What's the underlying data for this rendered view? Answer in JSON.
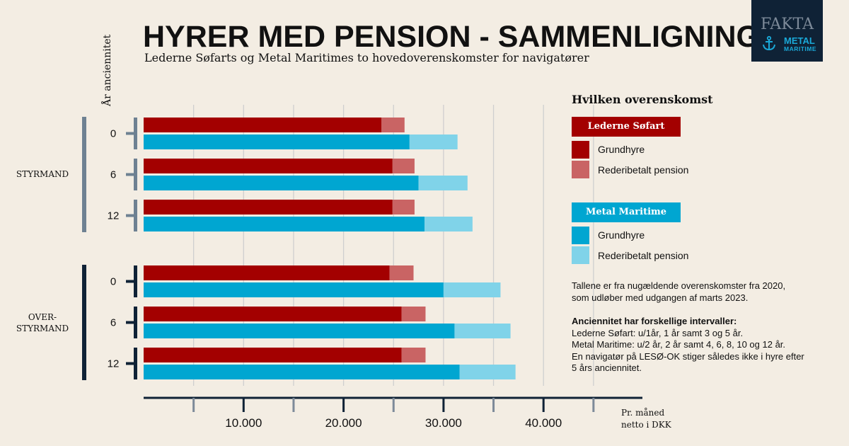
{
  "title": "HYRER MED PENSION - SAMMENLIGNING",
  "subtitle": "Lederne Søfarts og Metal Maritimes to hovedoverenskomster for navigatører",
  "badge": {
    "label": "FAKTA",
    "logo_line1": "METAL",
    "logo_line2": "MARITIME"
  },
  "legend": {
    "title": "Hvilken overenskomst",
    "groups": [
      {
        "name": "Lederne Søfart",
        "items": [
          "Grundhyre",
          "Rederibetalt pension"
        ]
      },
      {
        "name": "Metal Maritime",
        "items": [
          "Grundhyre",
          "Rederibetalt pension"
        ]
      }
    ]
  },
  "notes": {
    "intro": [
      "Tallene er fra nugældende overenskomster fra 2020,",
      "som udløber med udgangen af marts 2023."
    ],
    "heading": "Anciennitet har forskellige intervaller:",
    "lines": [
      "Lederne Søfart: u/1år, 1 år samt 3 og 5 år.",
      "Metal Maritime: u/2 år, 2 år samt 4, 6, 8, 10 og 12 år.",
      "En navigatør på LESØ-OK stiger således ikke i hyre efter",
      "5 års anciennitet."
    ]
  },
  "colors": {
    "ls_base": "#a30000",
    "ls_pension": "#c96464",
    "mm_base": "#00a6d1",
    "mm_pension": "#80d3e9",
    "grid": "#cfcfcf",
    "bracket_styrmand": "#6e8192",
    "bracket_overstyrmand": "#0f2236"
  },
  "chart_data": {
    "type": "bar",
    "orientation": "horizontal",
    "stacked": true,
    "ylabel": "År anciennitet",
    "xlabel": "Pr. måned netto i DKK",
    "xlabel_lines": [
      "Pr. måned",
      "netto i DKK"
    ],
    "xlim": [
      0,
      49500
    ],
    "xticks": [
      10000,
      20000,
      30000,
      40000
    ],
    "xtick_labels": [
      "10.000",
      "20.000",
      "30.000",
      "40.000"
    ],
    "groups": [
      {
        "label": "STYRMAND",
        "label_lines": [
          "STYRMAND"
        ],
        "rows": [
          {
            "seniority": "0",
            "lederne_sofart": {
              "grundhyre": 23800,
              "pension": 2300
            },
            "metal_maritime": {
              "grundhyre": 26600,
              "pension": 4800
            }
          },
          {
            "seniority": "6",
            "lederne_sofart": {
              "grundhyre": 24900,
              "pension": 2200
            },
            "metal_maritime": {
              "grundhyre": 27500,
              "pension": 4900
            }
          },
          {
            "seniority": "12",
            "lederne_sofart": {
              "grundhyre": 24900,
              "pension": 2200
            },
            "metal_maritime": {
              "grundhyre": 28100,
              "pension": 4800
            }
          }
        ]
      },
      {
        "label": "OVER-STYRMAND",
        "label_lines": [
          "OVER-",
          "STYRMAND"
        ],
        "rows": [
          {
            "seniority": "0",
            "lederne_sofart": {
              "grundhyre": 24600,
              "pension": 2400
            },
            "metal_maritime": {
              "grundhyre": 30000,
              "pension": 5700
            }
          },
          {
            "seniority": "6",
            "lederne_sofart": {
              "grundhyre": 25800,
              "pension": 2400
            },
            "metal_maritime": {
              "grundhyre": 31100,
              "pension": 5600
            }
          },
          {
            "seniority": "12",
            "lederne_sofart": {
              "grundhyre": 25800,
              "pension": 2400
            },
            "metal_maritime": {
              "grundhyre": 31600,
              "pension": 5600
            }
          }
        ]
      }
    ]
  }
}
